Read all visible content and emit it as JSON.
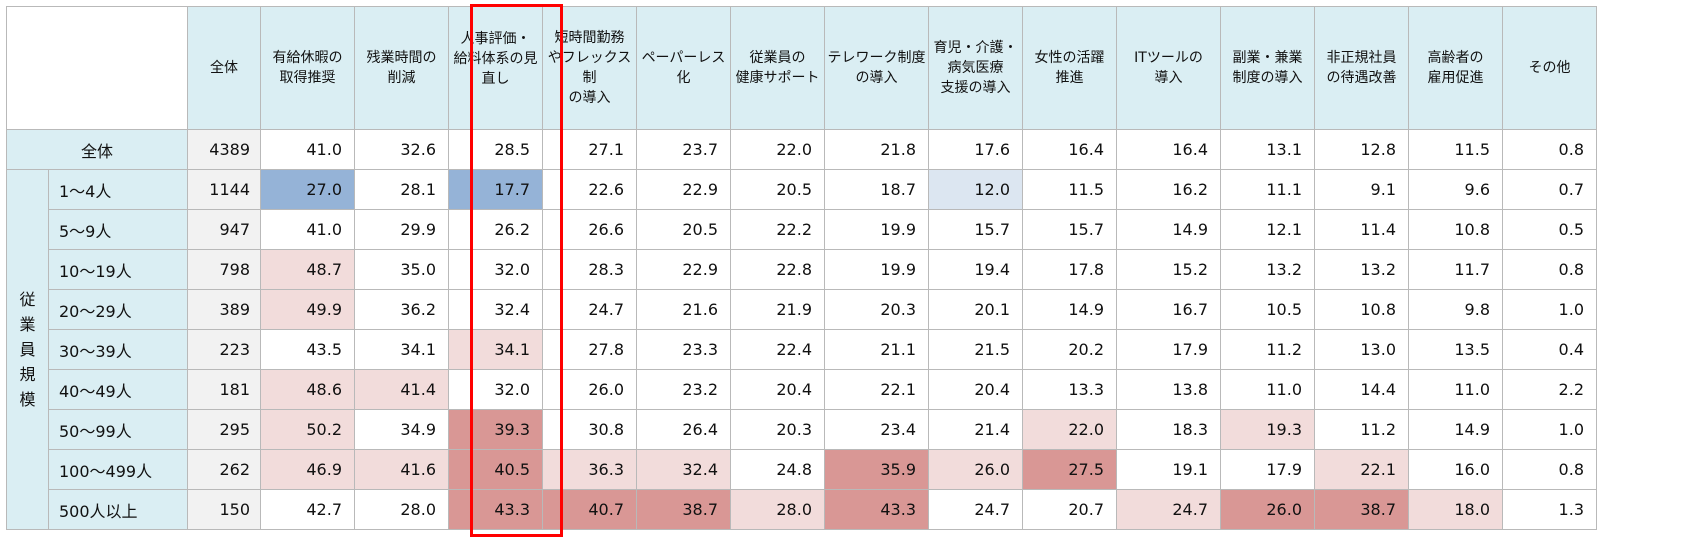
{
  "header": {
    "total": "全体",
    "columns": [
      "有給休暇の\n取得推奨",
      "残業時間の\n削減",
      "人事評価・\n給料体系の見\n直し",
      "短時間勤務\nやフレックス制\nの導入",
      "ペーパーレス化",
      "従業員の\n健康サポート",
      "テレワーク制度\nの導入",
      "育児・介護・\n病気医療\n支援の導入",
      "女性の活躍\n推進",
      "ITツールの\n導入",
      "副業・兼業\n制度の導入",
      "非正規社員\nの待遇改善",
      "高齢者の\n雇用促進",
      "その他"
    ]
  },
  "overall_row": {
    "label": "全体",
    "n": "4389",
    "values": [
      "41.0",
      "32.6",
      "28.5",
      "27.1",
      "23.7",
      "22.0",
      "21.8",
      "17.6",
      "16.4",
      "16.4",
      "13.1",
      "12.8",
      "11.5",
      "0.8"
    ]
  },
  "group_label": "従\n業\n員\n規\n模",
  "rows": [
    {
      "label": "1～4人",
      "n": "1144",
      "values": [
        "27.0",
        "28.1",
        "17.7",
        "22.6",
        "22.9",
        "20.5",
        "18.7",
        "12.0",
        "11.5",
        "16.2",
        "11.1",
        "9.1",
        "9.6",
        "0.7"
      ]
    },
    {
      "label": "5～9人",
      "n": "947",
      "values": [
        "41.0",
        "29.9",
        "26.2",
        "26.6",
        "20.5",
        "22.2",
        "19.9",
        "15.7",
        "15.7",
        "14.9",
        "12.1",
        "11.4",
        "10.8",
        "0.5"
      ]
    },
    {
      "label": "10～19人",
      "n": "798",
      "values": [
        "48.7",
        "35.0",
        "32.0",
        "28.3",
        "22.9",
        "22.8",
        "19.9",
        "19.4",
        "17.8",
        "15.2",
        "13.2",
        "13.2",
        "11.7",
        "0.8"
      ]
    },
    {
      "label": "20～29人",
      "n": "389",
      "values": [
        "49.9",
        "36.2",
        "32.4",
        "24.7",
        "21.6",
        "21.9",
        "20.3",
        "20.1",
        "14.9",
        "16.7",
        "10.5",
        "10.8",
        "9.8",
        "1.0"
      ]
    },
    {
      "label": "30～39人",
      "n": "223",
      "values": [
        "43.5",
        "34.1",
        "34.1",
        "27.8",
        "23.3",
        "22.4",
        "21.1",
        "21.5",
        "20.2",
        "17.9",
        "11.2",
        "13.0",
        "13.5",
        "0.4"
      ]
    },
    {
      "label": "40～49人",
      "n": "181",
      "values": [
        "48.6",
        "41.4",
        "32.0",
        "26.0",
        "23.2",
        "20.4",
        "22.1",
        "20.4",
        "13.3",
        "13.8",
        "11.0",
        "14.4",
        "11.0",
        "2.2"
      ]
    },
    {
      "label": "50～99人",
      "n": "295",
      "values": [
        "50.2",
        "34.9",
        "39.3",
        "30.8",
        "26.4",
        "20.3",
        "23.4",
        "21.4",
        "22.0",
        "18.3",
        "19.3",
        "11.2",
        "14.9",
        "1.0"
      ]
    },
    {
      "label": "100～499人",
      "n": "262",
      "values": [
        "46.9",
        "41.6",
        "40.5",
        "36.3",
        "32.4",
        "24.8",
        "35.9",
        "26.0",
        "27.5",
        "19.1",
        "17.9",
        "22.1",
        "16.0",
        "0.8"
      ]
    },
    {
      "label": "500人以上",
      "n": "150",
      "values": [
        "42.7",
        "28.0",
        "43.3",
        "40.7",
        "38.7",
        "28.0",
        "43.3",
        "24.7",
        "20.7",
        "24.7",
        "26.0",
        "38.7",
        "18.0",
        "1.3"
      ]
    }
  ],
  "cell_colors": {
    "low": "#95b3d7",
    "low2": "#dce6f1",
    "high1": "#f2dcdb",
    "high2": "#e6b9b8",
    "high3": "#d99795",
    "highlight_border": "#ff0000"
  },
  "shading": [
    [
      "low",
      "",
      "low",
      "",
      "",
      "",
      "",
      "low2",
      "",
      "",
      "",
      "",
      "",
      ""
    ],
    [
      "",
      "",
      "",
      "",
      "",
      "",
      "",
      "",
      "",
      "",
      "",
      "",
      "",
      ""
    ],
    [
      "high1",
      "",
      "",
      "",
      "",
      "",
      "",
      "",
      "",
      "",
      "",
      "",
      "",
      ""
    ],
    [
      "high1",
      "",
      "",
      "",
      "",
      "",
      "",
      "",
      "",
      "",
      "",
      "",
      "",
      ""
    ],
    [
      "",
      "",
      "high1",
      "",
      "",
      "",
      "",
      "",
      "",
      "",
      "",
      "",
      "",
      ""
    ],
    [
      "high1",
      "high1",
      "",
      "",
      "",
      "",
      "",
      "",
      "",
      "",
      "",
      "",
      "",
      ""
    ],
    [
      "high1",
      "",
      "high3",
      "",
      "",
      "",
      "",
      "",
      "high1",
      "",
      "high1",
      "",
      "",
      ""
    ],
    [
      "high1",
      "high1",
      "high3",
      "high1",
      "high1",
      "",
      "high3",
      "high1",
      "high3",
      "",
      "",
      "high1",
      "",
      ""
    ],
    [
      "",
      "",
      "high3",
      "high3",
      "high3",
      "high1",
      "high3",
      "",
      "",
      "high1",
      "high3",
      "high3",
      "high1",
      ""
    ]
  ]
}
